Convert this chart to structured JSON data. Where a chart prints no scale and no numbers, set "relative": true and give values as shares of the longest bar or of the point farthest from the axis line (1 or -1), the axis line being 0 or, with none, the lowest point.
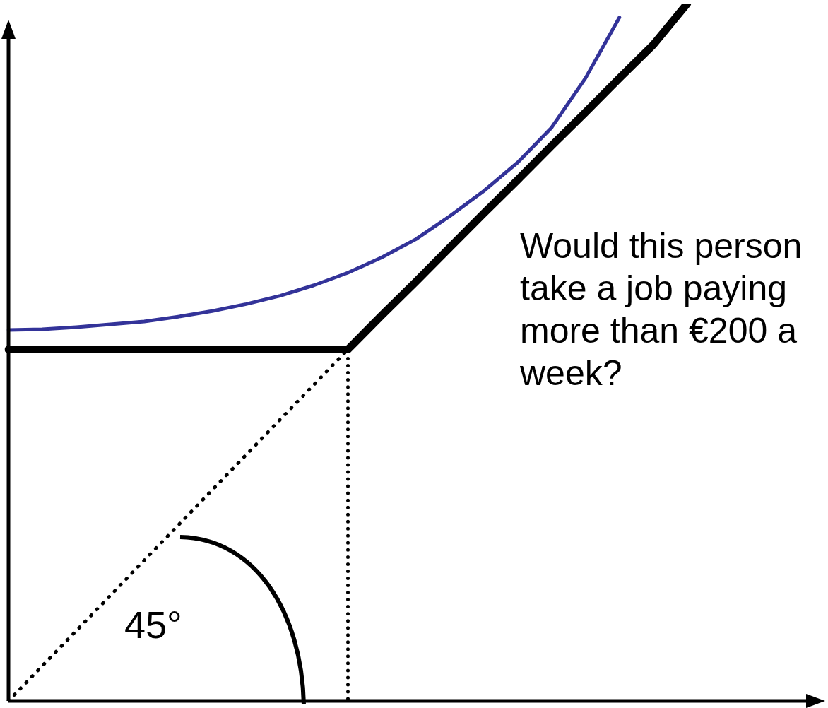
{
  "chart_data": {
    "type": "line",
    "relative": true,
    "legend": false,
    "grid": false,
    "categories": [
      null,
      null,
      null,
      null,
      null,
      null,
      null,
      null,
      null,
      null,
      null,
      null,
      null,
      null,
      null,
      null,
      null,
      null,
      null,
      null,
      null,
      null,
      null,
      null,
      null
    ],
    "series": [
      {
        "color": "#333399",
        "values": [
          0.532,
          0.533,
          0.536,
          0.54,
          0.544,
          0.551,
          0.559,
          0.569,
          0.581,
          0.596,
          0.614,
          0.636,
          0.662,
          0.695,
          0.731,
          0.772,
          0.822,
          0.893,
          0.98,
          null,
          null,
          null,
          null,
          null,
          null
        ]
      },
      {
        "color": "#000000",
        "values": [
          0.504,
          0.504,
          0.504,
          0.504,
          0.504,
          0.504,
          0.504,
          0.504,
          0.504,
          0.504,
          0.504,
          0.553,
          0.601,
          0.65,
          0.699,
          0.747,
          0.796,
          0.844,
          0.893,
          0.941,
          1,
          null,
          null,
          null,
          null
        ]
      },
      {
        "color": "#000000",
        "line_style": "dotted",
        "values": [
          0,
          0.0504,
          0.1008,
          0.1512,
          0.2016,
          0.252,
          0.3024,
          0.3528,
          0.4032,
          0.4536,
          0.504,
          null,
          null,
          null,
          null,
          null,
          null,
          null,
          null,
          null,
          null,
          null,
          null,
          null,
          null
        ]
      }
    ],
    "annotations": [
      "Would this person take a job paying more than €200 a week?",
      "45°"
    ]
  }
}
